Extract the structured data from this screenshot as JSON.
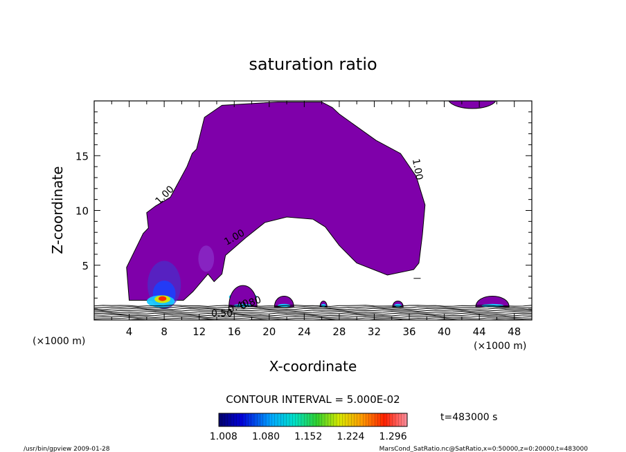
{
  "chart_data": {
    "type": "contour",
    "title": "saturation ratio",
    "xlabel": "X-coordinate",
    "ylabel": "Z-coordinate",
    "x_unit_left": "(×1000 m)",
    "x_unit_right": "(×1000 m)",
    "xlim": [
      0,
      50
    ],
    "ylim": [
      0,
      20
    ],
    "x_ticks": [
      4,
      8,
      12,
      16,
      20,
      24,
      28,
      32,
      36,
      40,
      44,
      48
    ],
    "y_ticks": [
      5,
      10,
      15
    ],
    "contour_interval_text": "CONTOUR INTERVAL = 5.000E-02",
    "time_text": "t=483000 s",
    "colorbar": {
      "min": 1.0,
      "max": 1.32,
      "tick_values": [
        1.008,
        1.08,
        1.152,
        1.224,
        1.296
      ],
      "tick_labels": [
        "1.008",
        "1.080",
        "1.152",
        "1.224",
        "1.296"
      ]
    },
    "contour_labels": [
      {
        "text": "1.00",
        "x": 8.3,
        "z": 11.2,
        "angle": -45
      },
      {
        "text": "1.00",
        "x": 16.2,
        "z": 7.3,
        "angle": -30
      },
      {
        "text": "1.00",
        "x": 36.6,
        "z": 13.7,
        "angle": 80
      },
      {
        "text": "0.50",
        "x": 14.6,
        "z": 0.3,
        "angle": 0
      },
      {
        "text": "0.40",
        "x": 16.6,
        "z": 1.0,
        "angle": -20
      },
      {
        "text": "0.80",
        "x": 18.0,
        "z": 1.3,
        "angle": -20
      }
    ],
    "saturated_region": {
      "level": 1.0,
      "color": "#7f00aa",
      "boundary": [
        [
          4.0,
          1.8
        ],
        [
          3.7,
          4.8
        ],
        [
          5.6,
          7.9
        ],
        [
          6.2,
          8.4
        ],
        [
          6.0,
          9.8
        ],
        [
          7.0,
          10.4
        ],
        [
          8.7,
          11.2
        ],
        [
          10.6,
          14.0
        ],
        [
          11.2,
          15.2
        ],
        [
          11.7,
          15.6
        ],
        [
          12.6,
          18.5
        ],
        [
          14.6,
          19.6
        ],
        [
          21.0,
          19.9
        ],
        [
          26.0,
          19.9
        ],
        [
          27.2,
          19.4
        ],
        [
          28.0,
          18.8
        ],
        [
          32.2,
          16.4
        ],
        [
          35.0,
          15.2
        ],
        [
          36.8,
          13.1
        ],
        [
          37.8,
          10.5
        ],
        [
          37.5,
          7.8
        ],
        [
          37.1,
          5.2
        ],
        [
          36.5,
          4.6
        ],
        [
          33.5,
          4.1
        ],
        [
          30.0,
          5.2
        ],
        [
          28.0,
          6.8
        ],
        [
          26.4,
          8.5
        ],
        [
          25.0,
          9.2
        ],
        [
          22.0,
          9.4
        ],
        [
          19.5,
          8.9
        ],
        [
          17.3,
          7.5
        ],
        [
          15.0,
          5.9
        ],
        [
          14.6,
          4.2
        ],
        [
          13.7,
          3.5
        ],
        [
          13.0,
          4.2
        ],
        [
          11.3,
          2.6
        ],
        [
          10.2,
          1.8
        ]
      ]
    },
    "moist_bulges": [
      {
        "x": [
          15.4,
          18.6
        ],
        "zmax": 3.8
      },
      {
        "x": [
          20.6,
          22.8
        ],
        "zmax": 2.5
      },
      {
        "x": [
          25.8,
          26.6
        ],
        "zmax": 1.9
      },
      {
        "x": [
          34.1,
          35.3
        ],
        "zmax": 1.9
      },
      {
        "x": [
          43.6,
          47.4
        ],
        "zmax": 2.5
      }
    ],
    "small_region_top_right": {
      "x": [
        40.5,
        45.9
      ],
      "z": [
        19.2,
        20.0
      ]
    },
    "surface_stripes": {
      "count": 10,
      "z_range": [
        0,
        1.3
      ]
    }
  },
  "footer": {
    "left": "/usr/bin/gpview   2009-01-28",
    "right": "MarsCond_SatRatio.nc@SatRatio,x=0:50000,z=0:20000,t=483000"
  }
}
